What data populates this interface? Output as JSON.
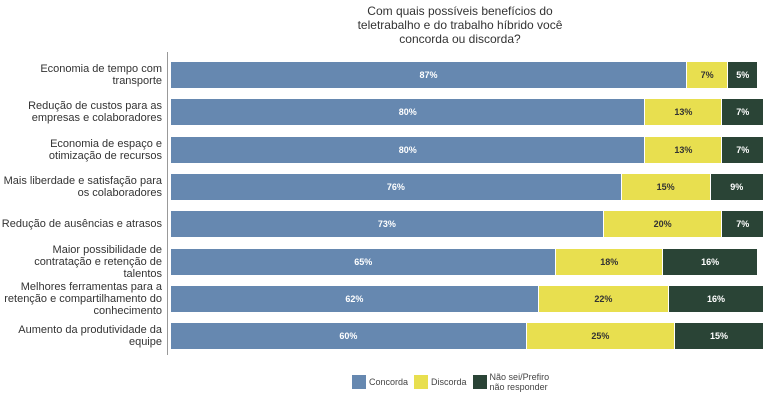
{
  "chart_data": {
    "type": "bar",
    "stacked": true,
    "orientation": "horizontal",
    "title": "Com quais possíveis benefícios do teletrabalho e do trabalho híbrido você concorda ou discorda?",
    "categories": [
      "Economia de tempo com transporte",
      "Redução de custos para as empresas e colaboradores",
      "Economia de espaço e otimização de recursos",
      "Mais liberdade e satisfação para os colaboradores",
      "Redução de ausências e atrasos",
      "Maior possibilidade de contratação e retenção de talentos",
      "Melhores ferramentas para a retenção e compartilhamento do conhecimento",
      "Aumento da produtividade da equipe"
    ],
    "series": [
      {
        "name": "Concorda",
        "color": "#6688b0",
        "text_color": "#ffffff",
        "values": [
          87,
          80,
          80,
          76,
          73,
          65,
          62,
          60
        ]
      },
      {
        "name": "Discorda",
        "color": "#e8df4f",
        "text_color": "#333333",
        "values": [
          7,
          13,
          13,
          15,
          20,
          18,
          22,
          25
        ]
      },
      {
        "name": "Não sei/Prefiro não responder",
        "color": "#2a4436",
        "text_color": "#ffffff",
        "values": [
          5,
          7,
          7,
          9,
          7,
          16,
          16,
          15
        ]
      }
    ],
    "value_suffix": "%",
    "legend_position": "bottom"
  }
}
